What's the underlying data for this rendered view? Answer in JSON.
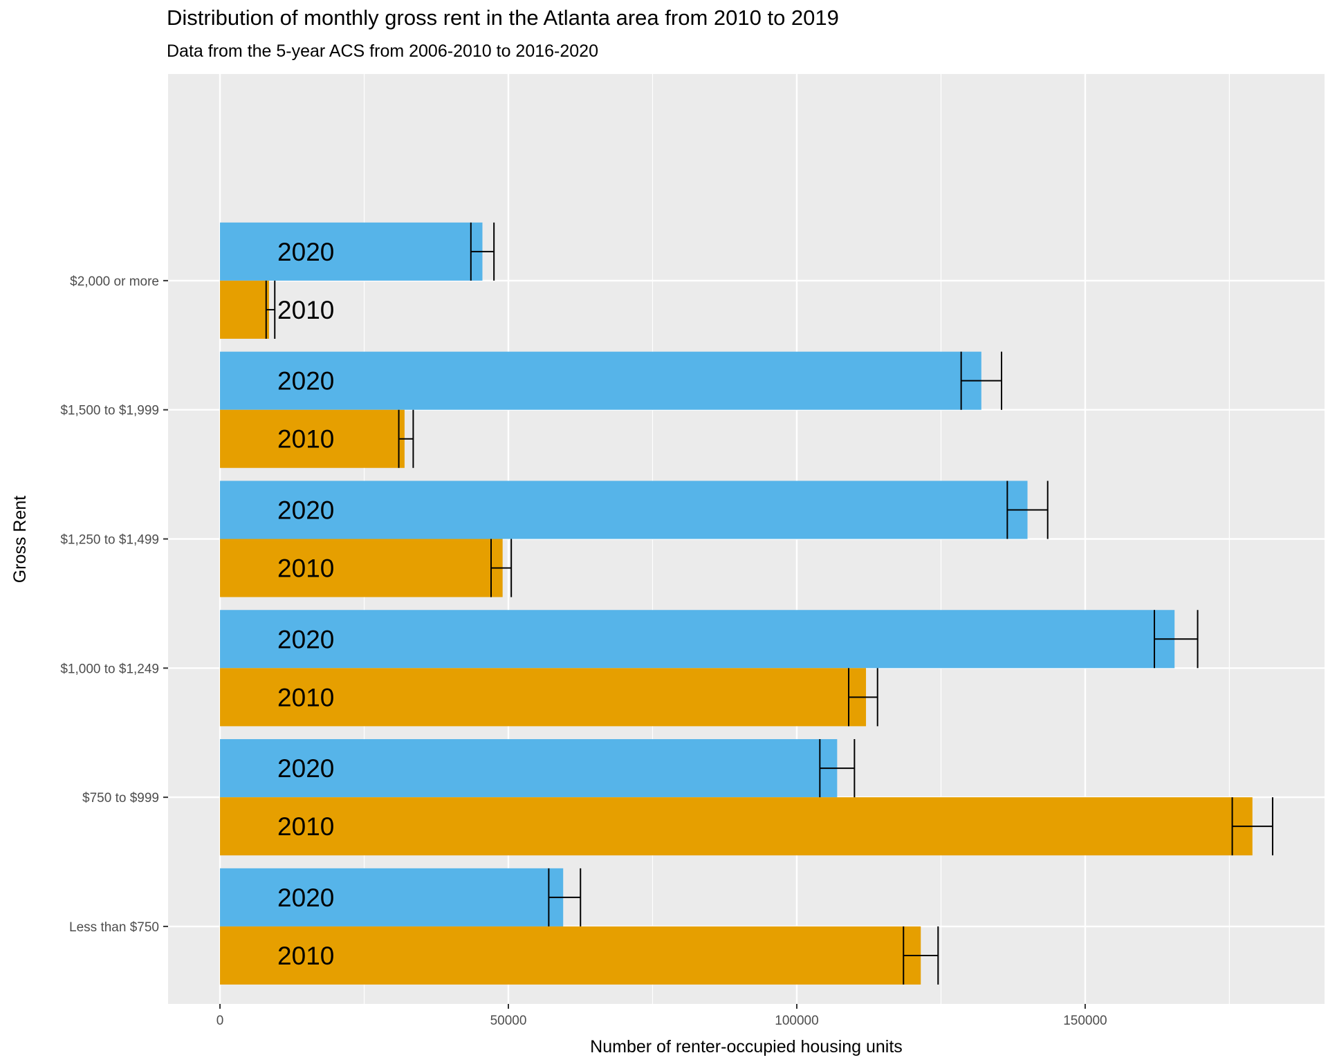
{
  "chart_data": {
    "type": "bar",
    "orientation": "horizontal",
    "title": "Distribution of monthly gross rent in the Atlanta area from 2010 to 2019",
    "subtitle": "Data from the 5-year ACS from 2006-2010 to 2016-2020",
    "xlabel": "Number of renter-occupied housing units",
    "ylabel": "Gross Rent",
    "xlim": [
      -9000,
      191500
    ],
    "x_ticks": [
      0,
      50000,
      100000,
      150000
    ],
    "categories": [
      "Less than $750",
      "$750 to $999",
      "$1,000 to $1,249",
      "$1,250 to $1,499",
      "$1,500 to $1,999",
      "$2,000 or more"
    ],
    "series": [
      {
        "name": "2020",
        "color": "#56B4E9",
        "values": [
          59500,
          107000,
          165500,
          140000,
          132000,
          45500
        ],
        "error_low": [
          57000,
          104000,
          162000,
          136500,
          128500,
          43500
        ],
        "error_high": [
          62500,
          110000,
          169500,
          143500,
          135500,
          47500
        ]
      },
      {
        "name": "2010",
        "color": "#E69F00",
        "values": [
          121500,
          179000,
          112000,
          49000,
          32000,
          8500
        ],
        "error_low": [
          118500,
          175500,
          109000,
          47000,
          31000,
          8000
        ],
        "error_high": [
          124500,
          182500,
          114000,
          50500,
          33500,
          9500
        ]
      }
    ],
    "grid": true,
    "legend": "none"
  }
}
